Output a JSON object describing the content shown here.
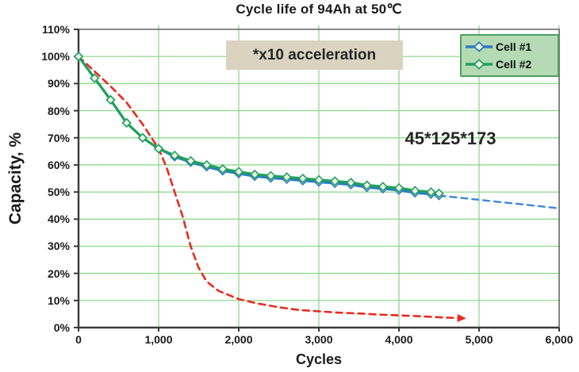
{
  "chart_data": {
    "type": "line",
    "title": "Cycle life of 94Ah at 50℃",
    "xlabel": "Cycles",
    "ylabel": "Capacity, %",
    "xlim": [
      0,
      6000
    ],
    "ylim_percent": [
      0,
      110
    ],
    "grid": true,
    "x_ticks": {
      "labels": [
        "0",
        "1,000",
        "2,000",
        "3,000",
        "4,000",
        "5,000",
        "6,000"
      ],
      "values": [
        0,
        1000,
        2000,
        3000,
        4000,
        5000,
        6000
      ]
    },
    "y_ticks": {
      "labels": [
        "110%",
        "100%",
        "90%",
        "80%",
        "70%",
        "60%",
        "50%",
        "40%",
        "30%",
        "20%",
        "10%",
        "0%"
      ],
      "values": [
        110,
        100,
        90,
        80,
        70,
        60,
        50,
        40,
        30,
        20,
        10,
        0
      ]
    },
    "legend": {
      "position": "top-right",
      "entries": [
        "Cell #1",
        "Cell #2"
      ]
    },
    "annotations": [
      {
        "text": "*x10 acceleration",
        "style": "boxed",
        "box_color": "#d9d3c0"
      },
      {
        "text": "45*125*173",
        "style": "plain"
      }
    ],
    "series": [
      {
        "name": "Cell #1",
        "color": "#2e7bc4",
        "style": "solid",
        "marker": "diamond",
        "width": 3,
        "x": [
          0,
          200,
          400,
          600,
          800,
          1000,
          1200,
          1400,
          1600,
          1800,
          2000,
          2200,
          2400,
          2600,
          2800,
          3000,
          3200,
          3400,
          3600,
          3800,
          4000,
          4200,
          4400,
          4500
        ],
        "y": [
          100,
          92,
          84,
          75.5,
          70,
          66,
          63,
          61,
          59.3,
          57.8,
          56.8,
          55.8,
          55.2,
          54.7,
          54.2,
          53.7,
          53.2,
          52.7,
          51.7,
          51.2,
          50.7,
          49.7,
          49.2,
          48.7
        ]
      },
      {
        "name": "Cell #2",
        "color": "#1fa15c",
        "style": "solid",
        "marker": "diamond",
        "width": 3.2,
        "x": [
          0,
          200,
          400,
          600,
          800,
          1000,
          1200,
          1400,
          1600,
          1800,
          2000,
          2200,
          2400,
          2600,
          2800,
          3000,
          3200,
          3400,
          3600,
          3800,
          4000,
          4200,
          4400,
          4500
        ],
        "y": [
          100,
          92,
          84,
          75.5,
          70,
          66,
          63.5,
          61.5,
          60,
          58.5,
          57.5,
          56.5,
          56,
          55.5,
          55,
          54.5,
          54,
          53.5,
          52.5,
          52,
          51.5,
          50.5,
          50,
          49.5
        ]
      },
      {
        "name": "Cell #1 extrapolation",
        "color": "#3d86d8",
        "style": "dashed",
        "marker": null,
        "width": 2.4,
        "x": [
          4500,
          6000
        ],
        "y": [
          48.7,
          44
        ]
      },
      {
        "name": "x10 accelerated curve",
        "color": "#e82a1f",
        "style": "dashed",
        "marker": null,
        "width": 2.6,
        "arrow_end": true,
        "x": [
          0,
          200,
          400,
          600,
          800,
          1000,
          1100,
          1200,
          1300,
          1400,
          1500,
          1600,
          1750,
          2000,
          2250,
          2500,
          2750,
          3000,
          3250,
          3500,
          3750,
          4000,
          4250,
          4500,
          4750
        ],
        "y": [
          100,
          94.5,
          89,
          83,
          75,
          66,
          59,
          50,
          41,
          30,
          22,
          17,
          13.5,
          10.5,
          8.8,
          7.5,
          6.5,
          6,
          5.5,
          5.2,
          4.8,
          4.5,
          4.2,
          3.8,
          3.5
        ]
      }
    ],
    "draw_order": [
      3,
      2,
      0,
      1
    ],
    "colors": {
      "gridline": "#85d685",
      "frame": "#4a4a4a",
      "axis": "#3a3a3a",
      "marker_fill": "#f0f7e8",
      "legend_bg": "#b4dbb4",
      "legend_border": "#4ca05c",
      "annotation_bg": "#d9d3c0"
    }
  }
}
